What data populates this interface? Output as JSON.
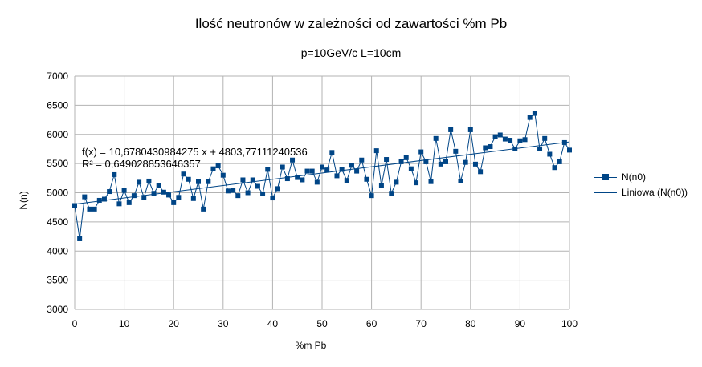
{
  "chart_data": {
    "type": "scatter",
    "title": "Ilość neutronów w zależności od zawartości %m Pb",
    "subtitle": "p=10GeV/c L=10cm",
    "xlabel": "%m Pb",
    "ylabel": "N(n)",
    "xlim": [
      0,
      100
    ],
    "ylim": [
      3000,
      7000
    ],
    "x_ticks": [
      "0",
      "10",
      "20",
      "30",
      "40",
      "50",
      "60",
      "70",
      "80",
      "90",
      "100"
    ],
    "y_ticks": [
      "3000",
      "3500",
      "4000",
      "4500",
      "5000",
      "5500",
      "6000",
      "6500",
      "7000"
    ],
    "grid": true,
    "legend_position": "right",
    "colors": {
      "series": "#004586"
    },
    "series": [
      {
        "name": "N(n0)",
        "marker": "square",
        "x": [
          0,
          1,
          2,
          3,
          4,
          5,
          6,
          7,
          8,
          9,
          10,
          11,
          12,
          13,
          14,
          15,
          16,
          17,
          18,
          19,
          20,
          21,
          22,
          23,
          24,
          25,
          26,
          27,
          28,
          29,
          30,
          31,
          32,
          33,
          34,
          35,
          36,
          37,
          38,
          39,
          40,
          41,
          42,
          43,
          44,
          45,
          46,
          47,
          48,
          49,
          50,
          51,
          52,
          53,
          54,
          55,
          56,
          57,
          58,
          59,
          60,
          61,
          62,
          63,
          64,
          65,
          66,
          67,
          68,
          69,
          70,
          71,
          72,
          73,
          74,
          75,
          76,
          77,
          78,
          79,
          80,
          81,
          82,
          83,
          84,
          85,
          86,
          87,
          88,
          89,
          90,
          91,
          92,
          93,
          94,
          95,
          96,
          97,
          98,
          99,
          100
        ],
        "y": [
          4780,
          4210,
          4930,
          4720,
          4720,
          4870,
          4890,
          5020,
          5310,
          4810,
          5040,
          4830,
          4950,
          5180,
          4920,
          5200,
          4990,
          5130,
          5010,
          4960,
          4830,
          4920,
          5320,
          5230,
          4900,
          5190,
          4720,
          5190,
          5410,
          5460,
          5300,
          5030,
          5040,
          4950,
          5220,
          5000,
          5220,
          5110,
          4980,
          5400,
          4910,
          5070,
          5440,
          5240,
          5560,
          5260,
          5220,
          5370,
          5370,
          5180,
          5440,
          5390,
          5690,
          5290,
          5400,
          5210,
          5470,
          5370,
          5560,
          5230,
          4950,
          5720,
          5120,
          5570,
          4990,
          5180,
          5530,
          5600,
          5410,
          5170,
          5700,
          5530,
          5190,
          5930,
          5490,
          5530,
          6080,
          5710,
          5200,
          5520,
          6080,
          5490,
          5360,
          5770,
          5790,
          5960,
          5990,
          5920,
          5900,
          5750,
          5890,
          5910,
          6290,
          6360,
          5750,
          5930,
          5660,
          5430,
          5530,
          5860,
          5730
        ]
      },
      {
        "name": "Liniowa (N(n0))",
        "type": "trendline",
        "x": [
          0,
          100
        ],
        "y": [
          4803.77,
          5871.58
        ]
      }
    ],
    "annotations": [
      "f(x) = 10,6780430984275 x + 4803,77111240536",
      "R² = 0,649028853646357"
    ]
  }
}
